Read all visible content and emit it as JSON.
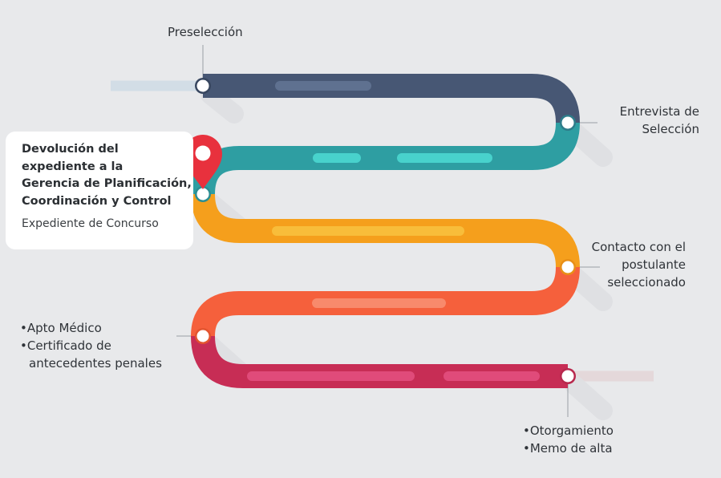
{
  "colors": {
    "background": "#e8e9eb",
    "band1": "#475774",
    "band2": "#2e9ea2",
    "band3": "#f59f1c",
    "band4": "#f5603c",
    "band5": "#c72d55",
    "pin": "#e8313d"
  },
  "stages": {
    "preseleccion": "Preselección",
    "entrevista": [
      "Entrevista de",
      "Selección"
    ],
    "devolucion": {
      "title": [
        "Devolución del",
        "expediente a la",
        "Gerencia de Planificación,",
        "Coordinación y Control"
      ],
      "subtitle": "Expediente de Concurso"
    },
    "contacto": [
      "Contacto con el",
      "postulante",
      "seleccionado"
    ],
    "apto": [
      "Apto Médico",
      "Certificado de",
      "antecedentes penales"
    ],
    "otorgamiento": [
      "Otorgamiento",
      "Memo de alta"
    ]
  },
  "icons": {
    "pin": "location-pin-icon"
  }
}
